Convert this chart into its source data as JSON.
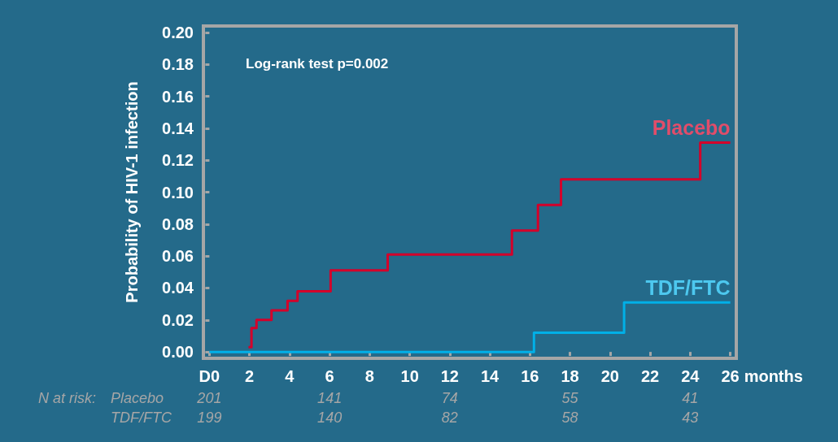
{
  "chart_data": {
    "type": "step",
    "ylabel": "Probability of HIV-1 infection",
    "xlabel": "months",
    "xlim": [
      -0.3,
      26.3
    ],
    "xticks": [
      {
        "value": 0,
        "label": "D0"
      },
      2,
      4,
      6,
      8,
      10,
      12,
      14,
      16,
      18,
      20,
      22,
      24,
      26
    ],
    "ylim": [
      -0.004,
      0.204
    ],
    "yticks": [
      {
        "value": 0,
        "label": "0.00"
      },
      {
        "value": 0.02,
        "label": "0.02"
      },
      {
        "value": 0.04,
        "label": "0.04"
      },
      {
        "value": 0.06,
        "label": "0.06"
      },
      {
        "value": 0.08,
        "label": "0.08"
      },
      {
        "value": 0.1,
        "label": "0.10"
      },
      {
        "value": 0.12,
        "label": "0.12"
      },
      {
        "value": 0.14,
        "label": "0.14"
      },
      {
        "value": 0.16,
        "label": "0.16"
      },
      {
        "value": 0.18,
        "label": "0.18"
      },
      {
        "value": 0.2,
        "label": "0.20"
      }
    ],
    "grid": false,
    "legend": false,
    "marker": "none",
    "line_style": "solid",
    "series": [
      {
        "name": "Placebo",
        "color": "#d4002a",
        "x": [
          1.95,
          2.1,
          2.35,
          3.1,
          3.9,
          4.4,
          6.05,
          8.9,
          15.1,
          16.4,
          17.55,
          24.5,
          26
        ],
        "values": [
          0.003,
          0.015,
          0.02,
          0.026,
          0.032,
          0.038,
          0.051,
          0.061,
          0.076,
          0.092,
          0.108,
          0.131,
          0.131
        ]
      },
      {
        "name": "TDF/FTC",
        "color": "#00b0e8",
        "x": [
          0,
          16.2,
          20.7,
          26
        ],
        "values": [
          0,
          0.012,
          0.031,
          0.031
        ]
      }
    ],
    "annotations": [
      "Log-rank test p=0.002",
      "N at risk:",
      "Placebo",
      "TDF/FTC",
      "201",
      "141",
      "74",
      "55",
      "41",
      "199",
      "140",
      "82",
      "58",
      "43"
    ]
  }
}
